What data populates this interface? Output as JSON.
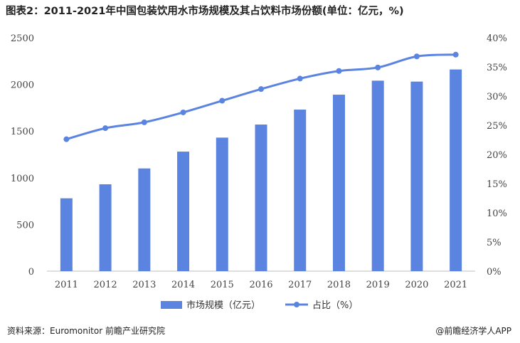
{
  "title": "图表2：2011-2021年中国包装饮用水市场规模及其占饮料市场份额(单位：亿元，%)",
  "footer": {
    "source": "资料来源：Euromonitor 前瞻产业研究院",
    "brand": "@前瞻经济学人APP"
  },
  "colors": {
    "bar": "#5b84e0",
    "line": "#5b84e0"
  },
  "chart_data": {
    "type": "bar",
    "categories": [
      "2011",
      "2012",
      "2013",
      "2014",
      "2015",
      "2016",
      "2017",
      "2018",
      "2019",
      "2020",
      "2021"
    ],
    "series": [
      {
        "name": "市场规模（亿元）",
        "type": "bar",
        "axis": "left",
        "values": [
          780,
          930,
          1100,
          1280,
          1430,
          1570,
          1730,
          1890,
          2040,
          2030,
          2160
        ]
      },
      {
        "name": "占比（%）",
        "type": "line",
        "axis": "right",
        "values": [
          22.6,
          24.5,
          25.5,
          27.2,
          29.2,
          31.2,
          33.0,
          34.3,
          34.9,
          36.8,
          37.1
        ]
      }
    ],
    "ylim": [
      0,
      2500
    ],
    "y_ticks": [
      "0",
      "500",
      "1000",
      "1500",
      "2000",
      "2500"
    ],
    "y2lim": [
      0,
      40
    ],
    "y2_ticks": [
      "0%",
      "5%",
      "10%",
      "15%",
      "20%",
      "25%",
      "30%",
      "35%",
      "40%"
    ],
    "grid": false,
    "legend_position": "bottom"
  }
}
